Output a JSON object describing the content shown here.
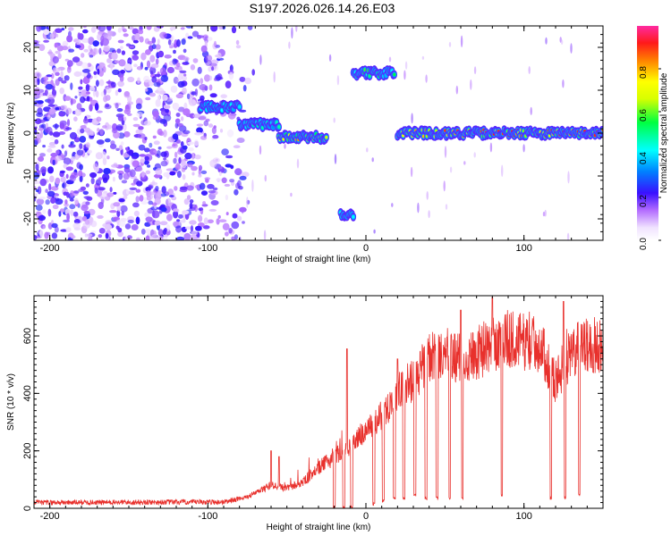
{
  "title": "S197.2026.026.14.26.E03",
  "chart_data": [
    {
      "type": "heatmap",
      "xlabel": "Height of straight line (km)",
      "ylabel": "Frequency (Hz)",
      "xlim": [
        -210,
        150
      ],
      "ylim": [
        -25,
        25
      ],
      "x_ticks": [
        -200,
        -100,
        0,
        100
      ],
      "x_tick_labels": [
        "-200",
        "-100",
        "0",
        "100"
      ],
      "y_ticks": [
        -20,
        -10,
        0,
        10,
        20
      ],
      "y_tick_labels": [
        "-20",
        "-10",
        "0",
        "10",
        "20"
      ],
      "colorbar": {
        "label": "Normalized spectral amplitude",
        "range": [
          0,
          1
        ],
        "ticks": [
          0.0,
          0.2,
          0.4,
          0.6,
          0.8
        ],
        "tick_labels": [
          "0.0",
          "0.2",
          "0.4",
          "0.6",
          "0.8"
        ]
      },
      "signal_track": [
        {
          "x_start": -105,
          "x_end": -80,
          "freq": 6,
          "peak_amplitude": 0.45
        },
        {
          "x_start": -80,
          "x_end": -55,
          "freq": 2,
          "peak_amplitude": 0.5
        },
        {
          "x_start": -55,
          "x_end": -25,
          "freq": -1,
          "peak_amplitude": 0.85
        },
        {
          "x_start": -16,
          "x_end": -8,
          "freq": -19,
          "peak_amplitude": 0.55
        },
        {
          "x_start": -8,
          "x_end": 18,
          "freq": 14,
          "peak_amplitude": 0.6
        },
        {
          "x_start": 20,
          "x_end": 150,
          "freq": 0,
          "peak_amplitude": 0.95
        }
      ],
      "noise_region": {
        "x_start": -210,
        "x_end": -80,
        "amplitude": 0.2
      }
    },
    {
      "type": "line",
      "xlabel": "Height of straight line (km)",
      "ylabel": "SNR (10 * v/v)",
      "xlim": [
        -210,
        150
      ],
      "ylim": [
        0,
        740
      ],
      "x_ticks": [
        -200,
        -100,
        0,
        100
      ],
      "x_tick_labels": [
        "-200",
        "-100",
        "0",
        "100"
      ],
      "y_ticks": [
        0,
        200,
        400,
        600
      ],
      "y_tick_labels": [
        "0",
        "200",
        "400",
        "600"
      ],
      "series": [
        {
          "name": "SNR",
          "color": "#e8302c",
          "envelope": [
            {
              "x": -210,
              "y": 20
            },
            {
              "x": -90,
              "y": 22
            },
            {
              "x": -75,
              "y": 40
            },
            {
              "x": -60,
              "y": 80
            },
            {
              "x": -50,
              "y": 70
            },
            {
              "x": -40,
              "y": 90
            },
            {
              "x": -30,
              "y": 140
            },
            {
              "x": -20,
              "y": 180
            },
            {
              "x": -10,
              "y": 220
            },
            {
              "x": 0,
              "y": 270
            },
            {
              "x": 10,
              "y": 330
            },
            {
              "x": 20,
              "y": 400
            },
            {
              "x": 30,
              "y": 450
            },
            {
              "x": 40,
              "y": 520
            },
            {
              "x": 50,
              "y": 540
            },
            {
              "x": 60,
              "y": 520
            },
            {
              "x": 70,
              "y": 540
            },
            {
              "x": 80,
              "y": 570
            },
            {
              "x": 90,
              "y": 590
            },
            {
              "x": 100,
              "y": 580
            },
            {
              "x": 110,
              "y": 570
            },
            {
              "x": 120,
              "y": 440
            },
            {
              "x": 125,
              "y": 500
            },
            {
              "x": 135,
              "y": 560
            },
            {
              "x": 150,
              "y": 570
            }
          ],
          "spikes": [
            {
              "x": -60,
              "y": 200
            },
            {
              "x": -55,
              "y": 180
            },
            {
              "x": -20,
              "y": 260
            },
            {
              "x": -12,
              "y": 555
            },
            {
              "x": 20,
              "y": 520
            },
            {
              "x": 60,
              "y": 690
            },
            {
              "x": 80,
              "y": 735
            },
            {
              "x": 125,
              "y": 720
            }
          ],
          "dropouts": [
            {
              "x": -20,
              "y": 0
            },
            {
              "x": -14,
              "y": 0
            },
            {
              "x": -9,
              "y": 0
            },
            {
              "x": 5,
              "y": 10
            },
            {
              "x": 11,
              "y": 20
            },
            {
              "x": 18,
              "y": 30
            },
            {
              "x": 24,
              "y": 30
            },
            {
              "x": 31,
              "y": 40
            },
            {
              "x": 38,
              "y": 30
            },
            {
              "x": 45,
              "y": 30
            },
            {
              "x": 53,
              "y": 30
            },
            {
              "x": 61,
              "y": 30
            },
            {
              "x": 86,
              "y": 40
            },
            {
              "x": 117,
              "y": 30
            },
            {
              "x": 126,
              "y": 30
            },
            {
              "x": 135,
              "y": 40
            }
          ]
        }
      ]
    }
  ]
}
